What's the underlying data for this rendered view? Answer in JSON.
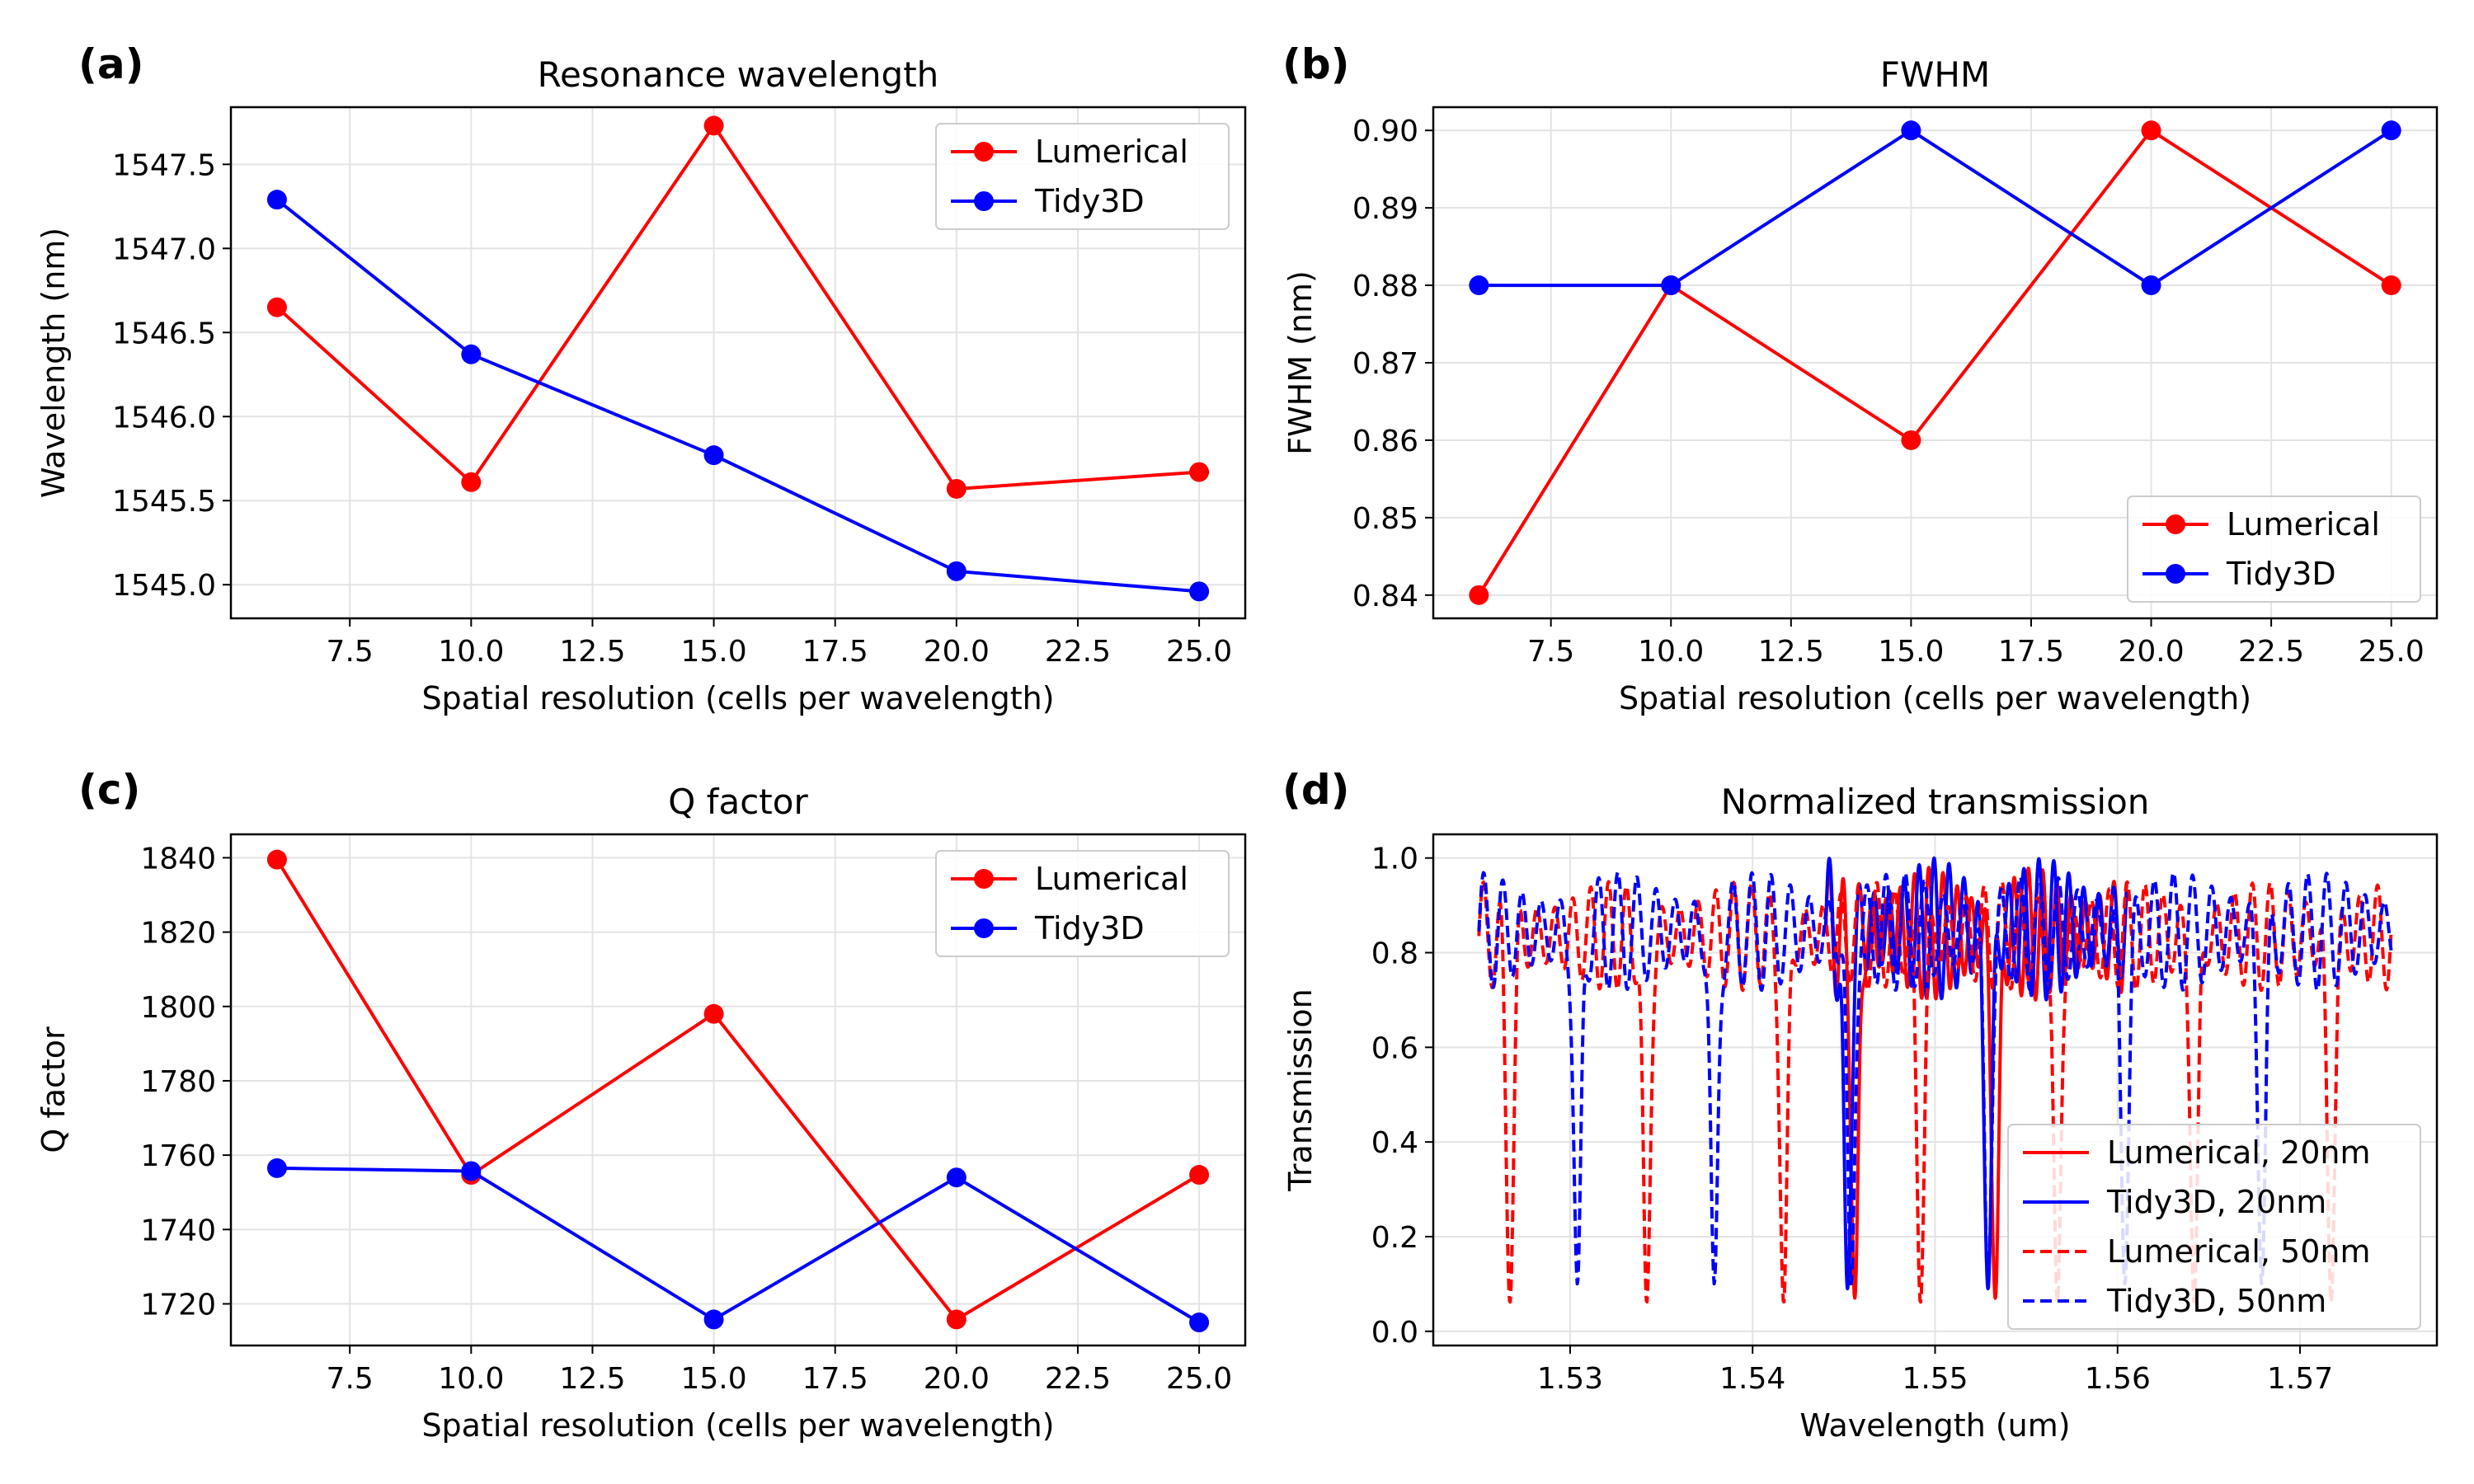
{
  "chart_data": [
    {
      "type": "line",
      "panel_label": "(a)",
      "title": "Resonance wavelength",
      "xlabel": "Spatial resolution (cells per wavelength)",
      "ylabel": "Wavelength (nm)",
      "xlim": [
        5.05,
        25.95
      ],
      "ylim": [
        1544.8,
        1547.84
      ],
      "xticks": [
        7.5,
        10.0,
        12.5,
        15.0,
        17.5,
        20.0,
        22.5,
        25.0
      ],
      "xtick_labels": [
        "7.5",
        "10.0",
        "12.5",
        "15.0",
        "17.5",
        "20.0",
        "22.5",
        "25.0"
      ],
      "yticks": [
        1545.0,
        1545.5,
        1546.0,
        1546.5,
        1547.0,
        1547.5
      ],
      "ytick_labels": [
        "1545.0",
        "1545.5",
        "1546.0",
        "1546.5",
        "1547.0",
        "1547.5"
      ],
      "grid": true,
      "legend_position": "top-right",
      "x": [
        6,
        10,
        15,
        20,
        25
      ],
      "series": [
        {
          "name": "Lumerical",
          "color": "#ff0000",
          "style": "solid",
          "marker": true,
          "values": [
            1546.65,
            1545.61,
            1547.73,
            1545.57,
            1545.67
          ]
        },
        {
          "name": "Tidy3D",
          "color": "#0000ff",
          "style": "solid",
          "marker": true,
          "values": [
            1547.29,
            1546.37,
            1545.77,
            1545.08,
            1544.96
          ]
        }
      ]
    },
    {
      "type": "line",
      "panel_label": "(b)",
      "title": "FWHM",
      "xlabel": "Spatial resolution (cells per wavelength)",
      "ylabel": "FWHM (nm)",
      "xlim": [
        5.05,
        25.95
      ],
      "ylim": [
        0.837,
        0.903
      ],
      "xticks": [
        7.5,
        10.0,
        12.5,
        15.0,
        17.5,
        20.0,
        22.5,
        25.0
      ],
      "xtick_labels": [
        "7.5",
        "10.0",
        "12.5",
        "15.0",
        "17.5",
        "20.0",
        "22.5",
        "25.0"
      ],
      "yticks": [
        0.84,
        0.85,
        0.86,
        0.87,
        0.88,
        0.89,
        0.9
      ],
      "ytick_labels": [
        "0.84",
        "0.85",
        "0.86",
        "0.87",
        "0.88",
        "0.89",
        "0.90"
      ],
      "grid": true,
      "legend_position": "bottom-right",
      "x": [
        6,
        10,
        15,
        20,
        25
      ],
      "series": [
        {
          "name": "Lumerical",
          "color": "#ff0000",
          "style": "solid",
          "marker": true,
          "values": [
            0.84,
            0.88,
            0.86,
            0.9,
            0.88
          ]
        },
        {
          "name": "Tidy3D",
          "color": "#0000ff",
          "style": "solid",
          "marker": true,
          "values": [
            0.88,
            0.88,
            0.9,
            0.88,
            0.9
          ]
        }
      ]
    },
    {
      "type": "line",
      "panel_label": "(c)",
      "title": "Q factor",
      "xlabel": "Spatial resolution (cells per wavelength)",
      "ylabel": "Q factor",
      "xlim": [
        5.05,
        25.95
      ],
      "ylim": [
        1708.8,
        1846.3
      ],
      "xticks": [
        7.5,
        10.0,
        12.5,
        15.0,
        17.5,
        20.0,
        22.5,
        25.0
      ],
      "xtick_labels": [
        "7.5",
        "10.0",
        "12.5",
        "15.0",
        "17.5",
        "20.0",
        "22.5",
        "25.0"
      ],
      "yticks": [
        1720,
        1740,
        1760,
        1780,
        1800,
        1820,
        1840
      ],
      "ytick_labels": [
        "1720",
        "1740",
        "1760",
        "1780",
        "1800",
        "1820",
        "1840"
      ],
      "grid": true,
      "legend_position": "top-right",
      "x": [
        6,
        10,
        15,
        20,
        25
      ],
      "series": [
        {
          "name": "Lumerical",
          "color": "#ff0000",
          "style": "solid",
          "marker": true,
          "values": [
            1839.5,
            1754.7,
            1798.0,
            1715.8,
            1754.7
          ]
        },
        {
          "name": "Tidy3D",
          "color": "#0000ff",
          "style": "solid",
          "marker": true,
          "values": [
            1756.5,
            1755.7,
            1715.8,
            1754.0,
            1715.0
          ]
        }
      ]
    },
    {
      "type": "line",
      "panel_label": "(d)",
      "title": "Normalized transmission",
      "xlabel": "Wavelength (um)",
      "ylabel": "Transmission",
      "xlim": [
        1.5225,
        1.5775
      ],
      "ylim": [
        -0.03,
        1.05
      ],
      "xticks": [
        1.53,
        1.54,
        1.55,
        1.56,
        1.57
      ],
      "xtick_labels": [
        "1.53",
        "1.54",
        "1.55",
        "1.56",
        "1.57"
      ],
      "yticks": [
        0.0,
        0.2,
        0.4,
        0.6,
        0.8,
        1.0
      ],
      "ytick_labels": [
        "0.0",
        "0.2",
        "0.4",
        "0.6",
        "0.8",
        "1.0"
      ],
      "grid": true,
      "legend_position": "bottom-right",
      "series": [
        {
          "name": "Lumerical, 20nm",
          "color": "#ff0000",
          "style": "solid",
          "x_range": [
            1.544,
            1.5605
          ],
          "fsr": 0.0077,
          "dip_centers": [
            1.5456,
            1.5533
          ],
          "dip_min": 0.07,
          "base": 0.7,
          "peak": 0.98,
          "period": 0.00078
        },
        {
          "name": "Tidy3D, 20nm",
          "color": "#0000ff",
          "style": "solid",
          "x_range": [
            1.544,
            1.5605
          ],
          "fsr": 0.0077,
          "dip_centers": [
            1.5452,
            1.5529
          ],
          "dip_min": 0.09,
          "base": 0.7,
          "peak": 1.0,
          "period": 0.00082
        },
        {
          "name": "Lumerical, 50nm",
          "color": "#ff0000",
          "style": "dashed",
          "x_range": [
            1.525,
            1.575
          ],
          "fsr": 0.0075,
          "dip_centers": [
            1.5267,
            1.5342,
            1.5417,
            1.5492,
            1.5567,
            1.5642,
            1.5717
          ],
          "dip_min": 0.06,
          "base": 0.72,
          "peak": 0.95,
          "period": 0.00098
        },
        {
          "name": "Tidy3D, 50nm",
          "color": "#0000ff",
          "style": "dashed",
          "x_range": [
            1.525,
            1.575
          ],
          "fsr": 0.0075,
          "dip_centers": [
            1.5304,
            1.5379,
            1.5454,
            1.5529,
            1.5604,
            1.5679
          ],
          "dip_min": 0.1,
          "base": 0.72,
          "peak": 0.97,
          "period": 0.00105
        }
      ]
    }
  ]
}
